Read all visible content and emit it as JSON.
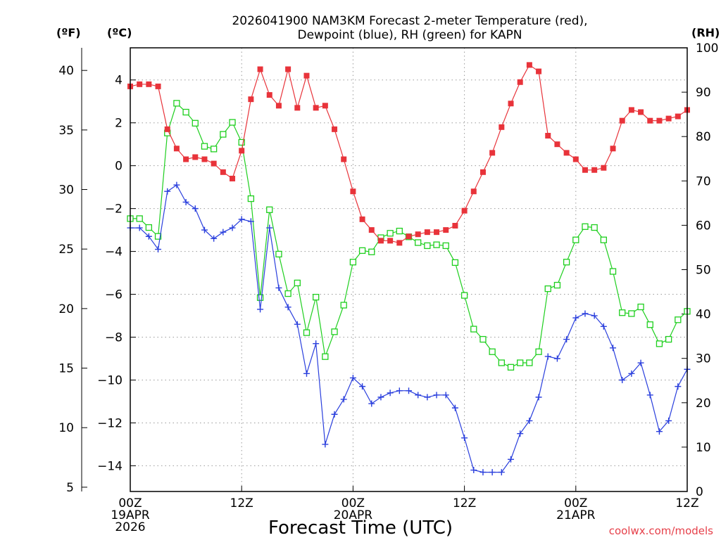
{
  "chart_data": {
    "type": "line",
    "title": "2026041900 NAM3KM Forecast 2-meter Temperature (red),",
    "subtitle": "Dewpoint (blue), RH (green) for KAPN",
    "xlabel": "Forecast Time (UTC)",
    "credit": "coolwx.com/models",
    "units": {
      "fahrenheit": "(ºF)",
      "celsius": "(ºC)",
      "rh": "(RH)"
    },
    "x_range_hours": [
      0,
      60
    ],
    "left_c_range": [
      -15.2,
      5.5
    ],
    "right_rh_range": [
      0,
      100
    ],
    "x_ticks": [
      {
        "hour": 0,
        "lines": [
          "00Z",
          "19APR",
          "2026"
        ]
      },
      {
        "hour": 12,
        "lines": [
          "12Z"
        ]
      },
      {
        "hour": 24,
        "lines": [
          "00Z",
          "20APR"
        ]
      },
      {
        "hour": 36,
        "lines": [
          "12Z"
        ]
      },
      {
        "hour": 48,
        "lines": [
          "00Z",
          "21APR"
        ]
      },
      {
        "hour": 60,
        "lines": [
          "12Z"
        ]
      }
    ],
    "f_ticks": [
      5,
      10,
      15,
      20,
      25,
      30,
      35,
      40
    ],
    "f_labels": [
      "5",
      "10",
      "15",
      "20",
      "25",
      "30",
      "35",
      "40"
    ],
    "c_ticks": [
      4,
      2,
      0,
      -2,
      -4,
      -6,
      -8,
      -10,
      -12,
      -14
    ],
    "c_labels": [
      "4",
      "2",
      "0",
      "−2",
      "−4",
      "−6",
      "−8",
      "−10",
      "−12",
      "−14"
    ],
    "rh_ticks": [
      0,
      10,
      20,
      30,
      40,
      50,
      60,
      70,
      80,
      90,
      100
    ],
    "rh_labels": [
      "0",
      "10",
      "20",
      "30",
      "40",
      "50",
      "60",
      "70",
      "80",
      "90",
      "100"
    ],
    "hours": [
      0,
      1,
      2,
      3,
      4,
      5,
      6,
      7,
      8,
      9,
      10,
      11,
      12,
      13,
      14,
      15,
      16,
      17,
      18,
      19,
      20,
      21,
      22,
      23,
      24,
      25,
      26,
      27,
      28,
      29,
      30,
      31,
      32,
      33,
      34,
      35,
      36,
      37,
      38,
      39,
      40,
      41,
      42,
      43,
      44,
      45,
      46,
      47,
      48,
      49,
      50,
      51,
      52,
      53,
      54,
      55,
      56,
      57,
      58,
      59,
      60
    ],
    "series": [
      {
        "name": "Temperature",
        "unit": "C",
        "color": "#e8333a",
        "marker": "square-filled",
        "values": [
          3.7,
          3.8,
          3.8,
          3.7,
          1.7,
          0.8,
          0.3,
          0.4,
          0.3,
          0.1,
          -0.3,
          -0.6,
          0.7,
          3.1,
          4.5,
          3.3,
          2.8,
          4.5,
          2.7,
          4.2,
          2.7,
          2.8,
          1.7,
          0.3,
          -1.2,
          -2.5,
          -3.0,
          -3.5,
          -3.5,
          -3.6,
          -3.3,
          -3.2,
          -3.1,
          -3.1,
          -3.0,
          -2.8,
          -2.1,
          -1.2,
          -0.3,
          0.6,
          1.8,
          2.9,
          3.9,
          4.7,
          4.4,
          1.4,
          1.0,
          0.6,
          0.3,
          -0.2,
          -0.2,
          -0.1,
          0.8,
          2.1,
          2.6,
          2.5,
          2.1,
          2.1,
          2.2,
          2.3,
          2.6
        ]
      },
      {
        "name": "Dewpoint",
        "unit": "C",
        "color": "#2a3fdd",
        "marker": "plus",
        "values": [
          -2.9,
          -2.9,
          -3.3,
          -3.9,
          -1.2,
          -0.9,
          -1.7,
          -2.0,
          -3.0,
          -3.4,
          -3.1,
          -2.9,
          -2.5,
          -2.6,
          -6.7,
          -2.9,
          -5.7,
          -6.6,
          -7.4,
          -9.7,
          -8.3,
          -13.0,
          -11.6,
          -10.9,
          -9.9,
          -10.3,
          -11.1,
          -10.8,
          -10.6,
          -10.5,
          -10.5,
          -10.7,
          -10.8,
          -10.7,
          -10.7,
          -11.3,
          -12.7,
          -14.2,
          -14.3,
          -14.3,
          -14.3,
          -13.7,
          -12.5,
          -11.9,
          -10.8,
          -8.9,
          -9.0,
          -8.1,
          -7.1,
          -6.9,
          -7.0,
          -7.5,
          -8.5,
          -10.0,
          -9.7,
          -9.2,
          -10.7,
          -12.4,
          -11.9,
          -10.3,
          -9.5
        ]
      },
      {
        "name": "RH",
        "unit": "%",
        "color": "#1ecf1e",
        "marker": "square-open",
        "values": [
          61.5,
          61.5,
          59.5,
          57.5,
          80.8,
          87.5,
          85.5,
          83.0,
          77.8,
          77.2,
          80.5,
          83.2,
          78.7,
          66.0,
          43.7,
          63.5,
          53.5,
          44.6,
          47.0,
          35.8,
          43.8,
          30.4,
          36.0,
          42.0,
          51.7,
          54.3,
          54.0,
          57.2,
          58.2,
          58.7,
          57.4,
          56.1,
          55.4,
          55.6,
          55.4,
          51.6,
          44.2,
          36.6,
          34.3,
          31.5,
          29.0,
          28.0,
          29.0,
          29.0,
          31.5,
          45.7,
          46.5,
          51.7,
          56.7,
          59.7,
          59.5,
          56.7,
          49.6,
          40.3,
          40.1,
          41.6,
          37.6,
          33.3,
          34.3,
          38.7,
          40.6
        ]
      }
    ]
  }
}
